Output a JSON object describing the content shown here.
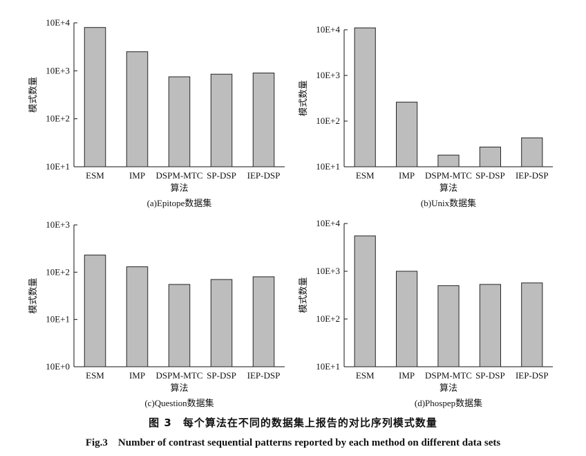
{
  "caption": {
    "cn": "图 3　每个算法在不同的数据集上报告的对比序列模式数量",
    "en": "Fig.3　Number of contrast sequential patterns reported by each method on different data sets"
  },
  "colors": {
    "bar_fill": "#bdbdbd",
    "bar_stroke": "#222222",
    "axis": "#111111"
  },
  "chart_data": [
    {
      "type": "bar",
      "log_scale": true,
      "grid": false,
      "subtitle": "(a)Epitope数据集",
      "xlabel": "算法",
      "ylabel": "模式数量",
      "categories": [
        "ESM",
        "IMP",
        "DSPM-MTC",
        "SP-DSP",
        "IEP-DSP"
      ],
      "values": [
        8000,
        2500,
        750,
        850,
        900
      ],
      "ylim_exp": [
        1,
        4
      ],
      "yticks": [
        "10E+1",
        "10E+2",
        "10E+3",
        "10E+4"
      ]
    },
    {
      "type": "bar",
      "log_scale": true,
      "grid": false,
      "subtitle": "(b)Unix数据集",
      "xlabel": "算法",
      "ylabel": "模式数量",
      "categories": [
        "ESM",
        "IMP",
        "DSPM-MTC",
        "SP-DSP",
        "IEP-DSP"
      ],
      "values": [
        11000,
        260,
        18,
        27,
        43
      ],
      "ylim_exp": [
        1,
        4
      ],
      "yticks": [
        "10E+1",
        "10E+2",
        "10E+3",
        "10E+4"
      ]
    },
    {
      "type": "bar",
      "log_scale": true,
      "grid": false,
      "subtitle": "(c)Question数据集",
      "xlabel": "算法",
      "ylabel": "模式数量",
      "categories": [
        "ESM",
        "IMP",
        "DSPM-MTC",
        "SP-DSP",
        "IEP-DSP"
      ],
      "values": [
        230,
        130,
        55,
        70,
        80
      ],
      "ylim_exp": [
        0,
        3
      ],
      "yticks": [
        "10E+0",
        "10E+1",
        "10E+2",
        "10E+3"
      ]
    },
    {
      "type": "bar",
      "log_scale": true,
      "grid": false,
      "subtitle": "(d)Phospep数据集",
      "xlabel": "算法",
      "ylabel": "模式数量",
      "categories": [
        "ESM",
        "IMP",
        "DSPM-MTC",
        "SP-DSP",
        "IEP-DSP"
      ],
      "values": [
        5500,
        1000,
        500,
        530,
        570
      ],
      "ylim_exp": [
        1,
        4
      ],
      "yticks": [
        "10E+1",
        "10E+2",
        "10E+3",
        "10E+4"
      ]
    }
  ]
}
